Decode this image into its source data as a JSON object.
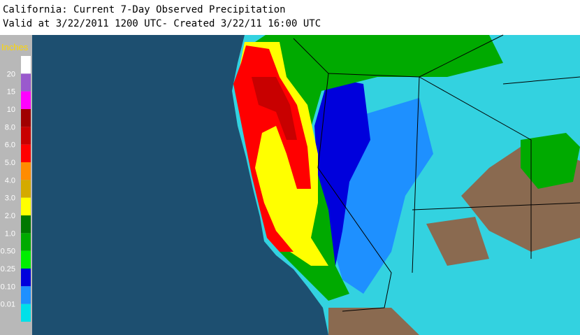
{
  "header": {
    "title": "California: Current 7-Day Observed Precipitation",
    "subtitle": "Valid at 3/22/2011 1200 UTC- Created 3/22/11 16:00 UTC"
  },
  "legend": {
    "title": "Inches",
    "items": [
      {
        "color": "#ffffff"
      },
      {
        "label": "20",
        "color": "#9a5acd"
      },
      {
        "label": "15",
        "color": "#ff00ff"
      },
      {
        "label": "10",
        "color": "#a00000"
      },
      {
        "label": "8.0",
        "color": "#c80000"
      },
      {
        "label": "6.0",
        "color": "#ff0000"
      },
      {
        "label": "5.0",
        "color": "#ff8c00"
      },
      {
        "label": "4.0",
        "color": "#d4aa00"
      },
      {
        "label": "3.0",
        "color": "#ffff00"
      },
      {
        "label": "2.0",
        "color": "#007800"
      },
      {
        "label": "1.0",
        "color": "#00aa00"
      },
      {
        "label": "0.50",
        "color": "#00ee00"
      },
      {
        "label": "0.25",
        "color": "#0000dc"
      },
      {
        "label": "0.10",
        "color": "#1e90ff"
      },
      {
        "label": "0.01",
        "color": "#00e0e8"
      }
    ]
  }
}
